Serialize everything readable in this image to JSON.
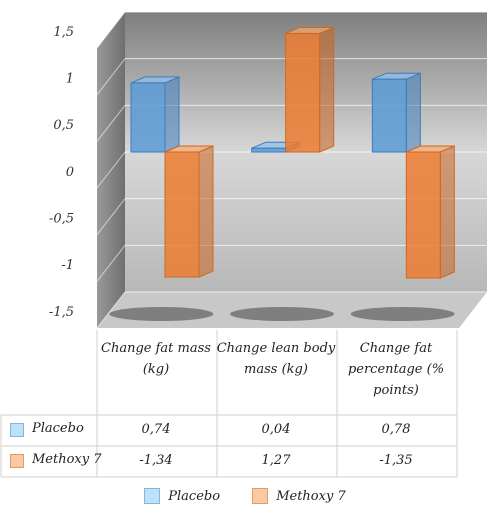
{
  "chart_data": {
    "type": "bar",
    "categories": [
      "Change fat mass (kg)",
      "Change lean body mass (kg)",
      "Change fat percentage (% points)"
    ],
    "series": [
      {
        "name": "Placebo",
        "values": [
          0.74,
          0.04,
          0.78
        ],
        "color": "#5b9bd5"
      },
      {
        "name": "Methoxy 7",
        "values": [
          -1.34,
          1.27,
          -1.35
        ],
        "color": "#ed7d31"
      }
    ],
    "ylim": [
      -1.5,
      1.5
    ],
    "yticks": [
      "1,5",
      "1",
      "0,5",
      "0",
      "-0,5",
      "-1",
      "-1,5"
    ],
    "table": {
      "headers": [
        "Change fat mass (kg)",
        "Change lean body mass (kg)",
        "Change fat percentage (% points)"
      ],
      "rows": [
        {
          "label": "Placebo",
          "cells": [
            "0,74",
            "0,04",
            "0,78"
          ]
        },
        {
          "label": "Methoxy 7",
          "cells": [
            "-1,34",
            "1,27",
            "-1,35"
          ]
        }
      ]
    },
    "legend": [
      "Placebo",
      "Methoxy 7"
    ],
    "grid": true
  }
}
